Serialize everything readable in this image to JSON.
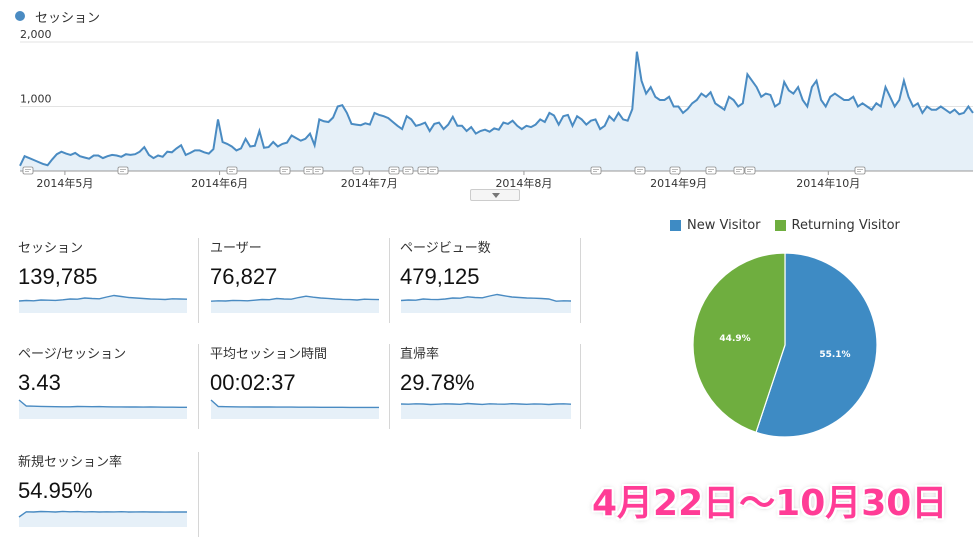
{
  "colors": {
    "series": "#4a8bc2",
    "area_fill": "#e6f0f8",
    "new_visitor": "#3e8bc4",
    "returning_visitor": "#6fae3f",
    "highlight": "#ff3c96"
  },
  "legend": {
    "label": "セッション"
  },
  "chart_data": [
    {
      "type": "area",
      "series": [
        {
          "name": "セッション"
        }
      ],
      "y_ticks": [
        "2,000",
        "1,000"
      ],
      "ylim": [
        0,
        2000
      ],
      "x_ticks": [
        "2014年5月",
        "2014年6月",
        "2014年7月",
        "2014年8月",
        "2014年9月",
        "2014年10月"
      ],
      "x_start": "2014-04-22",
      "x_end": "2014-10-30",
      "annotations_icon": "comment-marker-icon",
      "values": [
        80,
        230,
        200,
        170,
        140,
        110,
        90,
        180,
        260,
        300,
        270,
        250,
        280,
        230,
        210,
        190,
        240,
        240,
        200,
        230,
        250,
        240,
        220,
        260,
        250,
        260,
        300,
        370,
        250,
        200,
        240,
        220,
        300,
        290,
        350,
        400,
        250,
        280,
        320,
        320,
        290,
        270,
        340,
        800,
        450,
        420,
        380,
        320,
        350,
        500,
        380,
        390,
        620,
        360,
        370,
        450,
        380,
        420,
        440,
        550,
        510,
        470,
        500,
        580,
        400,
        800,
        770,
        760,
        830,
        1000,
        1020,
        900,
        730,
        720,
        710,
        740,
        720,
        900,
        870,
        850,
        820,
        760,
        700,
        650,
        850,
        800,
        700,
        720,
        750,
        620,
        730,
        750,
        650,
        720,
        840,
        700,
        700,
        620,
        680,
        580,
        620,
        640,
        610,
        660,
        640,
        750,
        730,
        780,
        700,
        650,
        700,
        680,
        720,
        800,
        760,
        900,
        860,
        720,
        850,
        870,
        700,
        850,
        800,
        720,
        780,
        800,
        650,
        700,
        850,
        780,
        900,
        800,
        780,
        960,
        1850,
        1400,
        1200,
        1300,
        1150,
        1100,
        1100,
        1150,
        1000,
        1000,
        900,
        960,
        1050,
        1100,
        1200,
        1150,
        1220,
        1050,
        1000,
        950,
        1150,
        1100,
        1000,
        1050,
        1500,
        1400,
        1300,
        1150,
        1200,
        1180,
        1000,
        1050,
        1380,
        1250,
        1200,
        1300,
        1100,
        1000,
        1300,
        1400,
        1100,
        1000,
        1150,
        1200,
        1150,
        1100,
        1100,
        1150,
        1000,
        1050,
        1000,
        950,
        1050,
        1000,
        1300,
        1150,
        1000,
        1100,
        1400,
        1150,
        1000,
        1050,
        900,
        1000,
        950,
        950,
        1000,
        950,
        900,
        950,
        880,
        900,
        1000,
        900
      ]
    },
    {
      "type": "pie",
      "legend": [
        "New Visitor",
        "Returning Visitor"
      ],
      "values": [
        55.1,
        44.9
      ],
      "labels": [
        "55.1%",
        "44.9%"
      ]
    }
  ],
  "metrics": [
    {
      "label": "セッション",
      "value": "139,785",
      "spark": [
        120,
        125,
        122,
        130,
        128,
        126,
        132,
        140,
        138,
        150,
        145,
        142,
        160,
        175,
        165,
        155,
        150,
        145,
        140,
        138,
        135,
        142,
        140,
        138
      ]
    },
    {
      "label": "ユーザー",
      "value": "76,827",
      "spark": [
        118,
        122,
        120,
        126,
        124,
        122,
        128,
        135,
        133,
        145,
        140,
        138,
        155,
        168,
        158,
        150,
        146,
        140,
        136,
        134,
        130,
        138,
        136,
        134
      ]
    },
    {
      "label": "ページビュー数",
      "value": "479,125",
      "spark": [
        125,
        130,
        128,
        140,
        136,
        134,
        140,
        150,
        148,
        162,
        155,
        152,
        170,
        185,
        172,
        160,
        155,
        150,
        148,
        145,
        140,
        118,
        122,
        120
      ]
    },
    {
      "label": "ページ/セッション",
      "value": "3.43",
      "spark": [
        190,
        130,
        128,
        126,
        124,
        123,
        122,
        122,
        125,
        124,
        123,
        124,
        122,
        121,
        121,
        120,
        120,
        119,
        120,
        119,
        118,
        118,
        117,
        117
      ]
    },
    {
      "label": "平均セッション時間",
      "value": "00:02:37",
      "spark": [
        190,
        125,
        123,
        122,
        121,
        121,
        120,
        120,
        120,
        119,
        119,
        119,
        118,
        118,
        118,
        117,
        117,
        117,
        117,
        116,
        116,
        116,
        116,
        116
      ]
    },
    {
      "label": "直帰率",
      "value": "29.78%",
      "spark": [
        150,
        148,
        152,
        150,
        145,
        148,
        152,
        150,
        147,
        155,
        150,
        146,
        152,
        149,
        148,
        153,
        150,
        147,
        151,
        149,
        145,
        150,
        152,
        148
      ]
    },
    {
      "label": "新規セッション率",
      "value": "54.95%",
      "spark": [
        100,
        152,
        150,
        155,
        153,
        150,
        156,
        152,
        154,
        151,
        153,
        150,
        152,
        151,
        153,
        150,
        151,
        152,
        150,
        151,
        149,
        150,
        151,
        150
      ]
    }
  ],
  "date_range": "4月22日〜10月30日"
}
